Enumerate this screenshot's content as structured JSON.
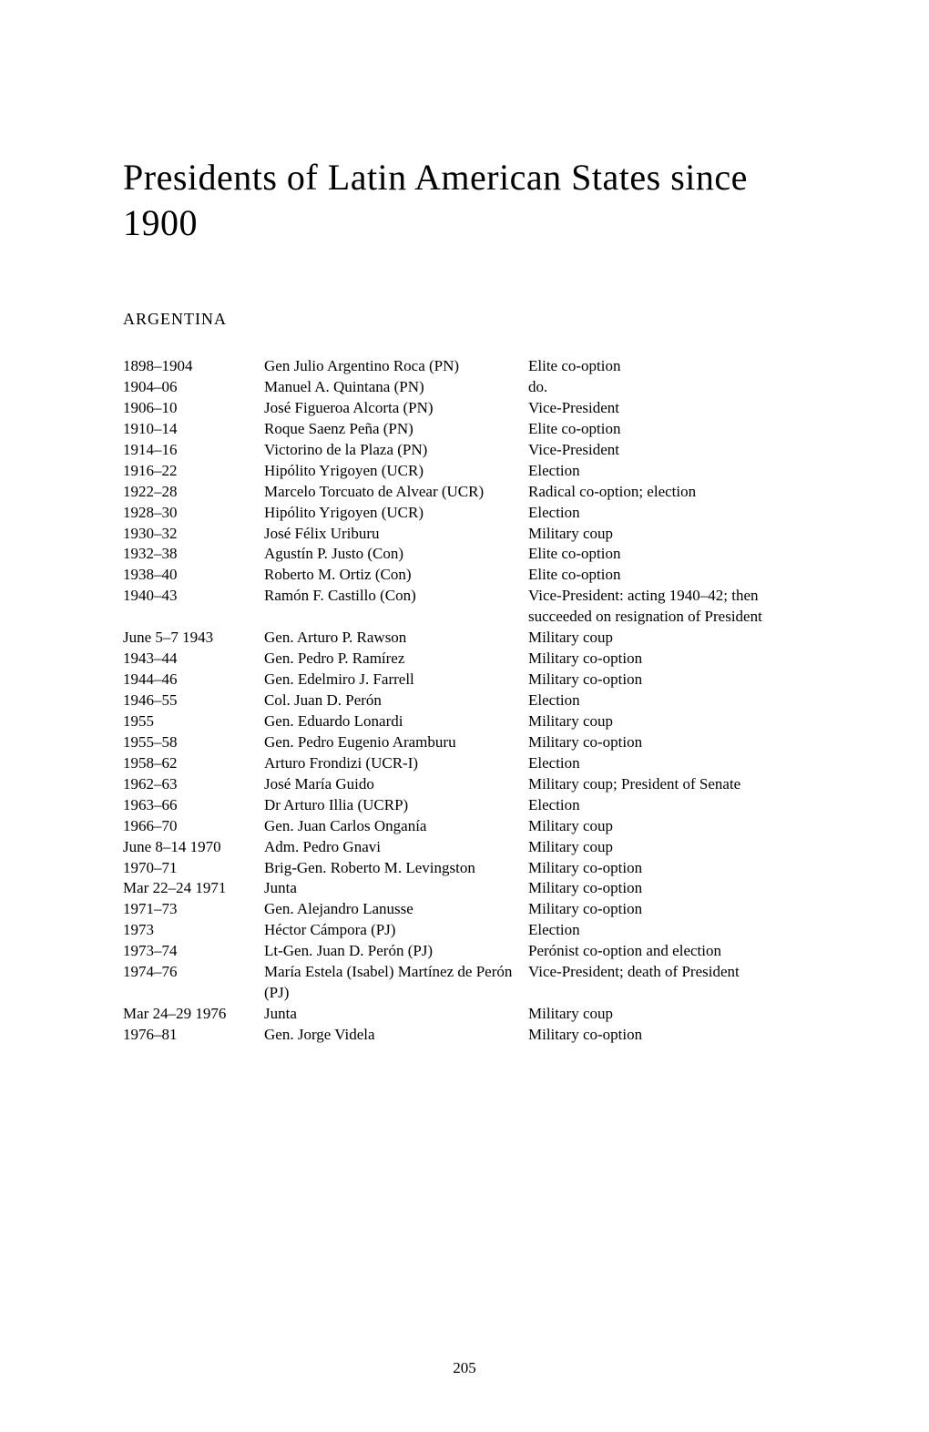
{
  "title": "Presidents of Latin American States since 1900",
  "section": "ARGENTINA",
  "page_number": "205",
  "rows": [
    {
      "dates": "1898–1904",
      "name": "Gen Julio Argentino Roca (PN)",
      "method": "Elite co-option"
    },
    {
      "dates": "1904–06",
      "name": "Manuel A. Quintana (PN)",
      "method": "do."
    },
    {
      "dates": "1906–10",
      "name": "José Figueroa Alcorta (PN)",
      "method": "Vice-President"
    },
    {
      "dates": "1910–14",
      "name": "Roque Saenz Peña (PN)",
      "method": "Elite co-option"
    },
    {
      "dates": "1914–16",
      "name": "Victorino de la Plaza (PN)",
      "method": "Vice-President"
    },
    {
      "dates": "1916–22",
      "name": "Hipólito Yrigoyen (UCR)",
      "method": "Election"
    },
    {
      "dates": "1922–28",
      "name": "Marcelo Torcuato de Alvear (UCR)",
      "method": "Radical co-option; election"
    },
    {
      "dates": "1928–30",
      "name": "Hipólito Yrigoyen (UCR)",
      "method": "Election"
    },
    {
      "dates": "1930–32",
      "name": "José Félix Uriburu",
      "method": "Military coup"
    },
    {
      "dates": "1932–38",
      "name": "Agustín P. Justo (Con)",
      "method": "Elite co-option"
    },
    {
      "dates": "1938–40",
      "name": "Roberto M. Ortiz (Con)",
      "method": "Elite co-option"
    },
    {
      "dates": "1940–43",
      "name": "Ramón F. Castillo (Con)",
      "method": "Vice-President: acting 1940–42; then succeeded on resignation of President"
    },
    {
      "dates": "June 5–7 1943",
      "name": "Gen. Arturo P. Rawson",
      "method": "Military coup"
    },
    {
      "dates": "1943–44",
      "name": "Gen. Pedro P. Ramírez",
      "method": "Military co-option"
    },
    {
      "dates": "1944–46",
      "name": "Gen. Edelmiro J. Farrell",
      "method": "Military co-option"
    },
    {
      "dates": "1946–55",
      "name": "Col. Juan D. Perón",
      "method": "Election"
    },
    {
      "dates": "1955",
      "name": "Gen. Eduardo Lonardi",
      "method": "Military coup"
    },
    {
      "dates": "1955–58",
      "name": "Gen. Pedro Eugenio Aramburu",
      "method": "Military co-option"
    },
    {
      "dates": "1958–62",
      "name": "Arturo Frondizi (UCR-I)",
      "method": "Election"
    },
    {
      "dates": "1962–63",
      "name": "José María Guido",
      "method": "Military coup; President of Senate"
    },
    {
      "dates": "1963–66",
      "name": "Dr Arturo Illia (UCRP)",
      "method": "Election"
    },
    {
      "dates": "1966–70",
      "name": "Gen. Juan Carlos Onganía",
      "method": "Military coup"
    },
    {
      "dates": "June 8–14 1970",
      "name": "Adm. Pedro Gnavi",
      "method": "Military coup"
    },
    {
      "dates": "1970–71",
      "name": "Brig-Gen. Roberto M. Levingston",
      "method": "Military co-option"
    },
    {
      "dates": "Mar 22–24 1971",
      "name": "Junta",
      "method": "Military co-option"
    },
    {
      "dates": "1971–73",
      "name": "Gen. Alejandro Lanusse",
      "method": "Military co-option"
    },
    {
      "dates": "1973",
      "name": "Héctor Cámpora (PJ)",
      "method": "Election"
    },
    {
      "dates": "1973–74",
      "name": "Lt-Gen. Juan D. Perón (PJ)",
      "method": "Perónist co-option and election"
    },
    {
      "dates": "1974–76",
      "name": "María Estela (Isabel) Martínez de Perón (PJ)",
      "method": "Vice-President; death of President"
    },
    {
      "dates": "Mar 24–29 1976",
      "name": "Junta",
      "method": "Military coup"
    },
    {
      "dates": "1976–81",
      "name": "Gen. Jorge Videla",
      "method": "Military co-option"
    }
  ]
}
